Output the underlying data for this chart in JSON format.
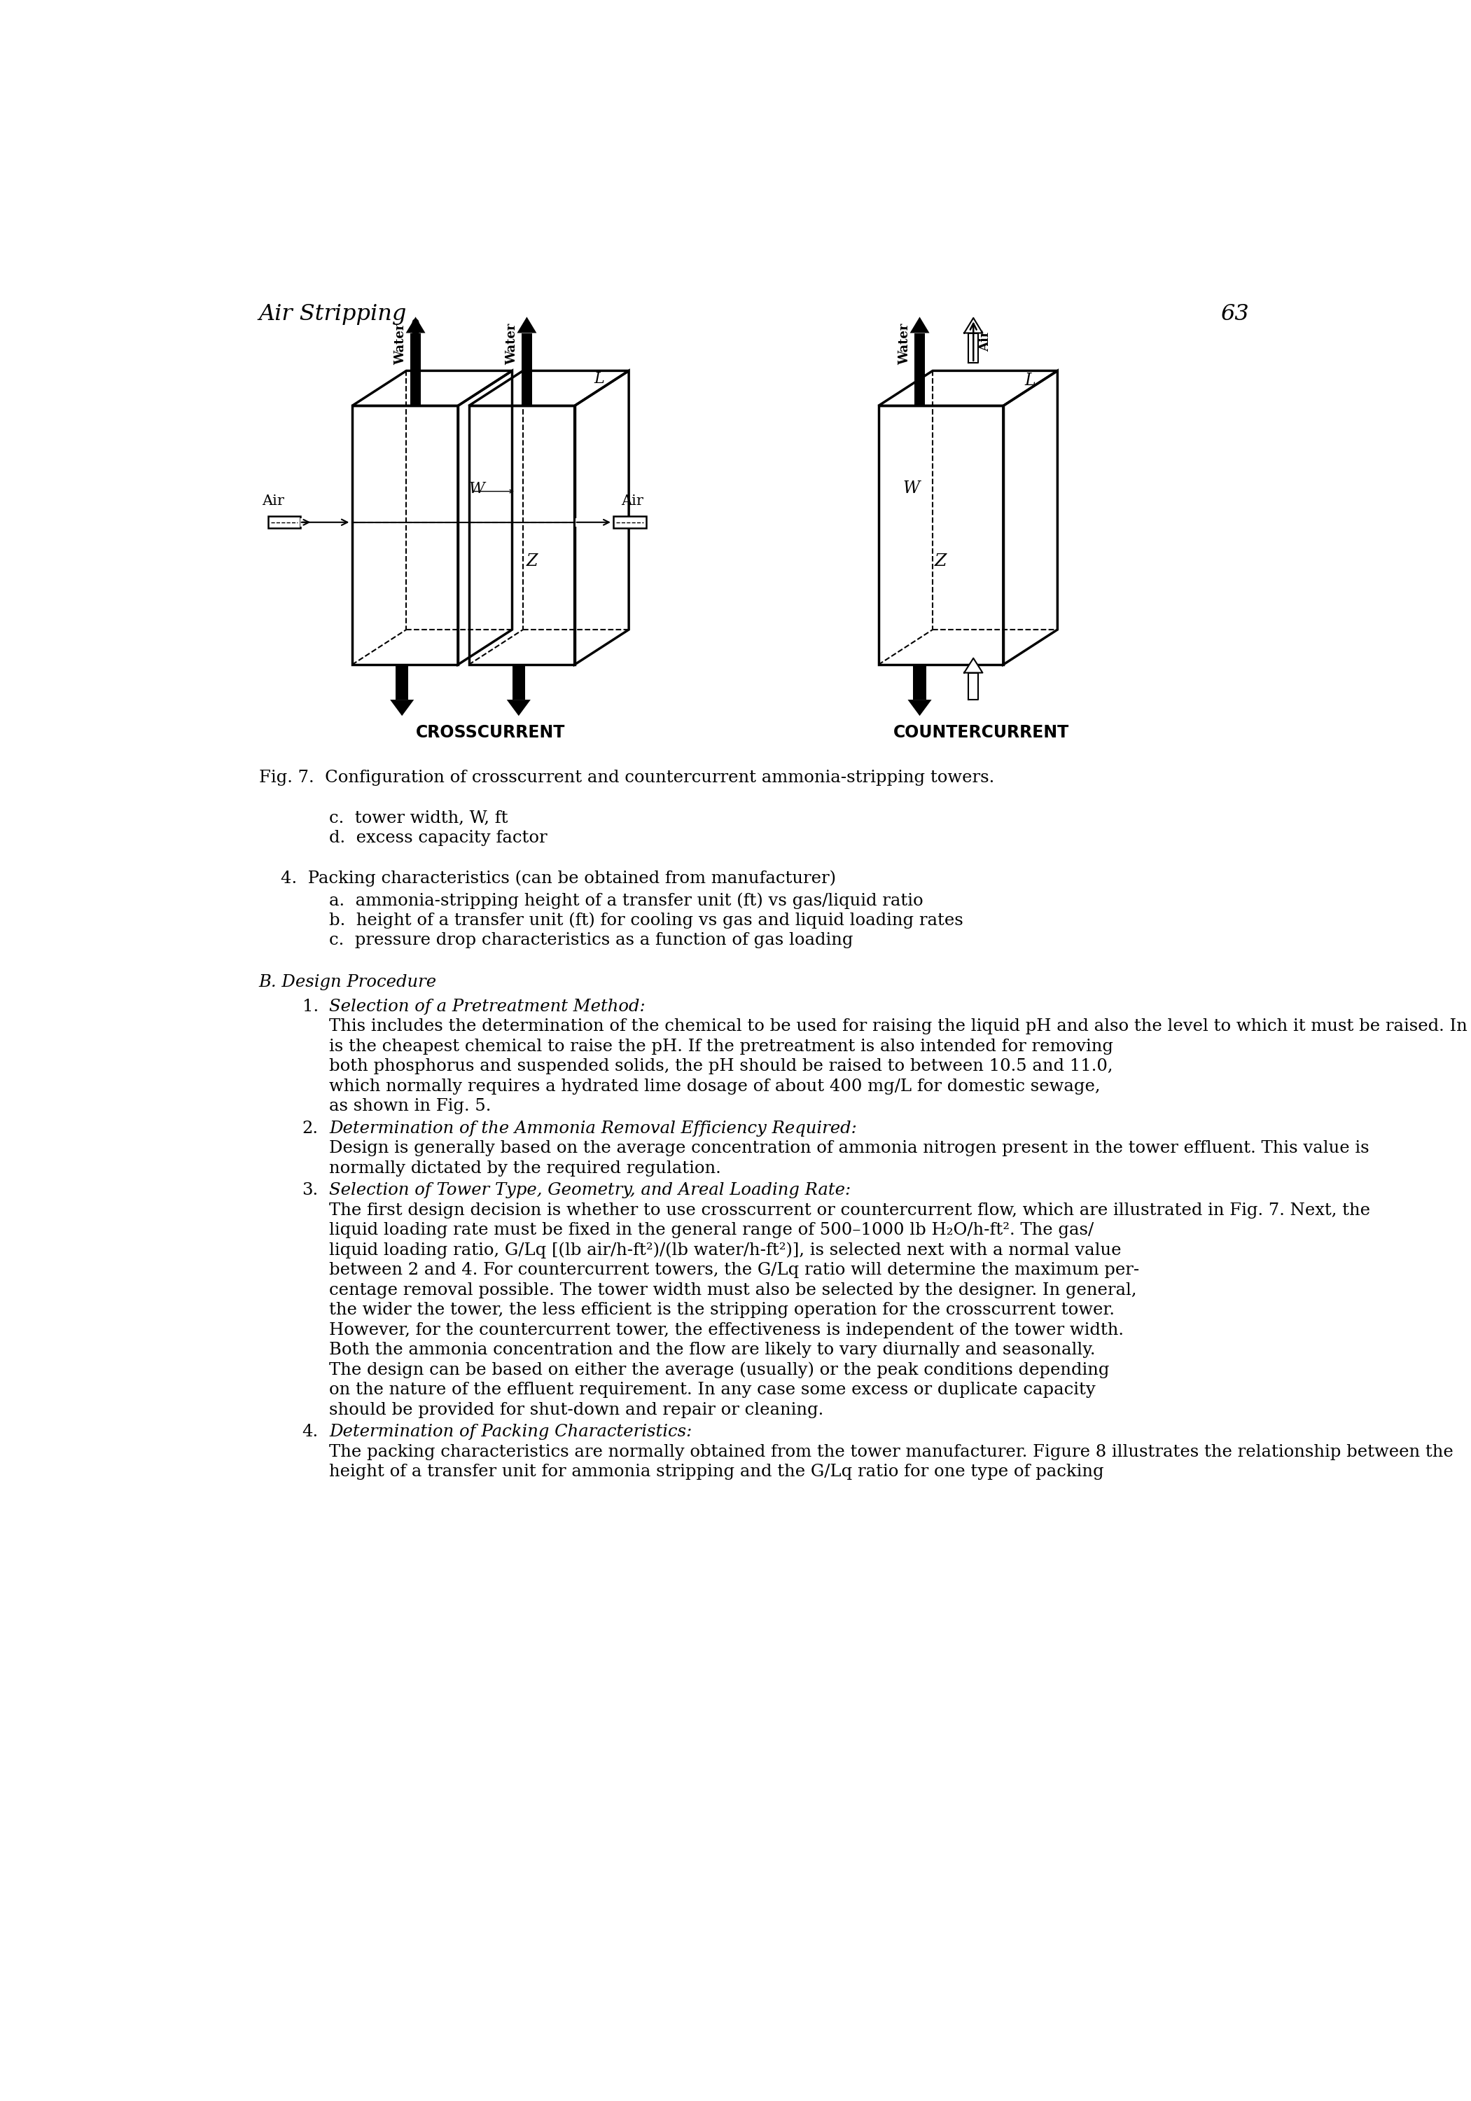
{
  "page_title_left": "Air Stripping",
  "page_number": "63",
  "fig_caption": "Fig. 7.  Configuration of crosscurrent and countercurrent ammonia-stripping towers.",
  "crosscurrent_label": "CROSSCURRENT",
  "countercurrent_label": "COUNTERCURRENT",
  "background_color": "#ffffff",
  "text_color": "#000000",
  "text_c": "c.  tower width, W, ft",
  "text_d": "d.  excess capacity factor",
  "item4_header": "4.  Packing characteristics (can be obtained from manufacturer)",
  "item4a": "a.  ammonia-stripping height of a transfer unit (ft) vs gas/liquid ratio",
  "item4b": "b.  height of a transfer unit (ft) for cooling vs gas and liquid loading rates",
  "item4c": "c.  pressure drop characteristics as a function of gas loading",
  "section_B": "B. Design Procedure",
  "item1_num": "1.",
  "item1_title": "Selection of a Pretreatment Method:",
  "item1_lines": [
    "This includes the determination of the chemical to be used for raising the liquid pH and also the level to which it must be raised. In general, lime",
    "is the cheapest chemical to raise the pH. If the pretreatment is also intended for removing",
    "both phosphorus and suspended solids, the pH should be raised to between 10.5 and 11.0,",
    "which normally requires a hydrated lime dosage of about 400 mg/L for domestic sewage,",
    "as shown in Fig. 5."
  ],
  "item2_num": "2.",
  "item2_title": "Determination of the Ammonia Removal Efficiency Required:",
  "item2_lines": [
    "Design is generally based on the average concentration of ammonia nitrogen present in the tower effluent. This value is",
    "normally dictated by the required regulation."
  ],
  "item3_num": "3.",
  "item3_title": "Selection of Tower Type, Geometry, and Areal Loading Rate:",
  "item3_lines": [
    "The first design decision is whether to use crosscurrent or countercurrent flow, which are illustrated in Fig. 7. Next, the",
    "liquid loading rate must be fixed in the general range of 500–1000 lb H₂O/h-ft². The gas/",
    "liquid loading ratio, G/Lq [(lb air/h-ft²)/(lb water/h-ft²)], is selected next with a normal value",
    "between 2 and 4. For countercurrent towers, the G/Lq ratio will determine the maximum per-",
    "centage removal possible. The tower width must also be selected by the designer. In general,",
    "the wider the tower, the less efficient is the stripping operation for the crosscurrent tower.",
    "However, for the countercurrent tower, the effectiveness is independent of the tower width.",
    "Both the ammonia concentration and the flow are likely to vary diurnally and seasonally.",
    "The design can be based on either the average (usually) or the peak conditions depending",
    "on the nature of the effluent requirement. In any case some excess or duplicate capacity",
    "should be provided for shut-down and repair or cleaning."
  ],
  "item4_num": "4.",
  "item4_title2": "Determination of Packing Characteristics:",
  "item4_lines": [
    "The packing characteristics are normally obtained from the tower manufacturer. Figure 8 illustrates the relationship between the",
    "height of a transfer unit for ammonia stripping and the G/Lq ratio for one type of packing"
  ]
}
